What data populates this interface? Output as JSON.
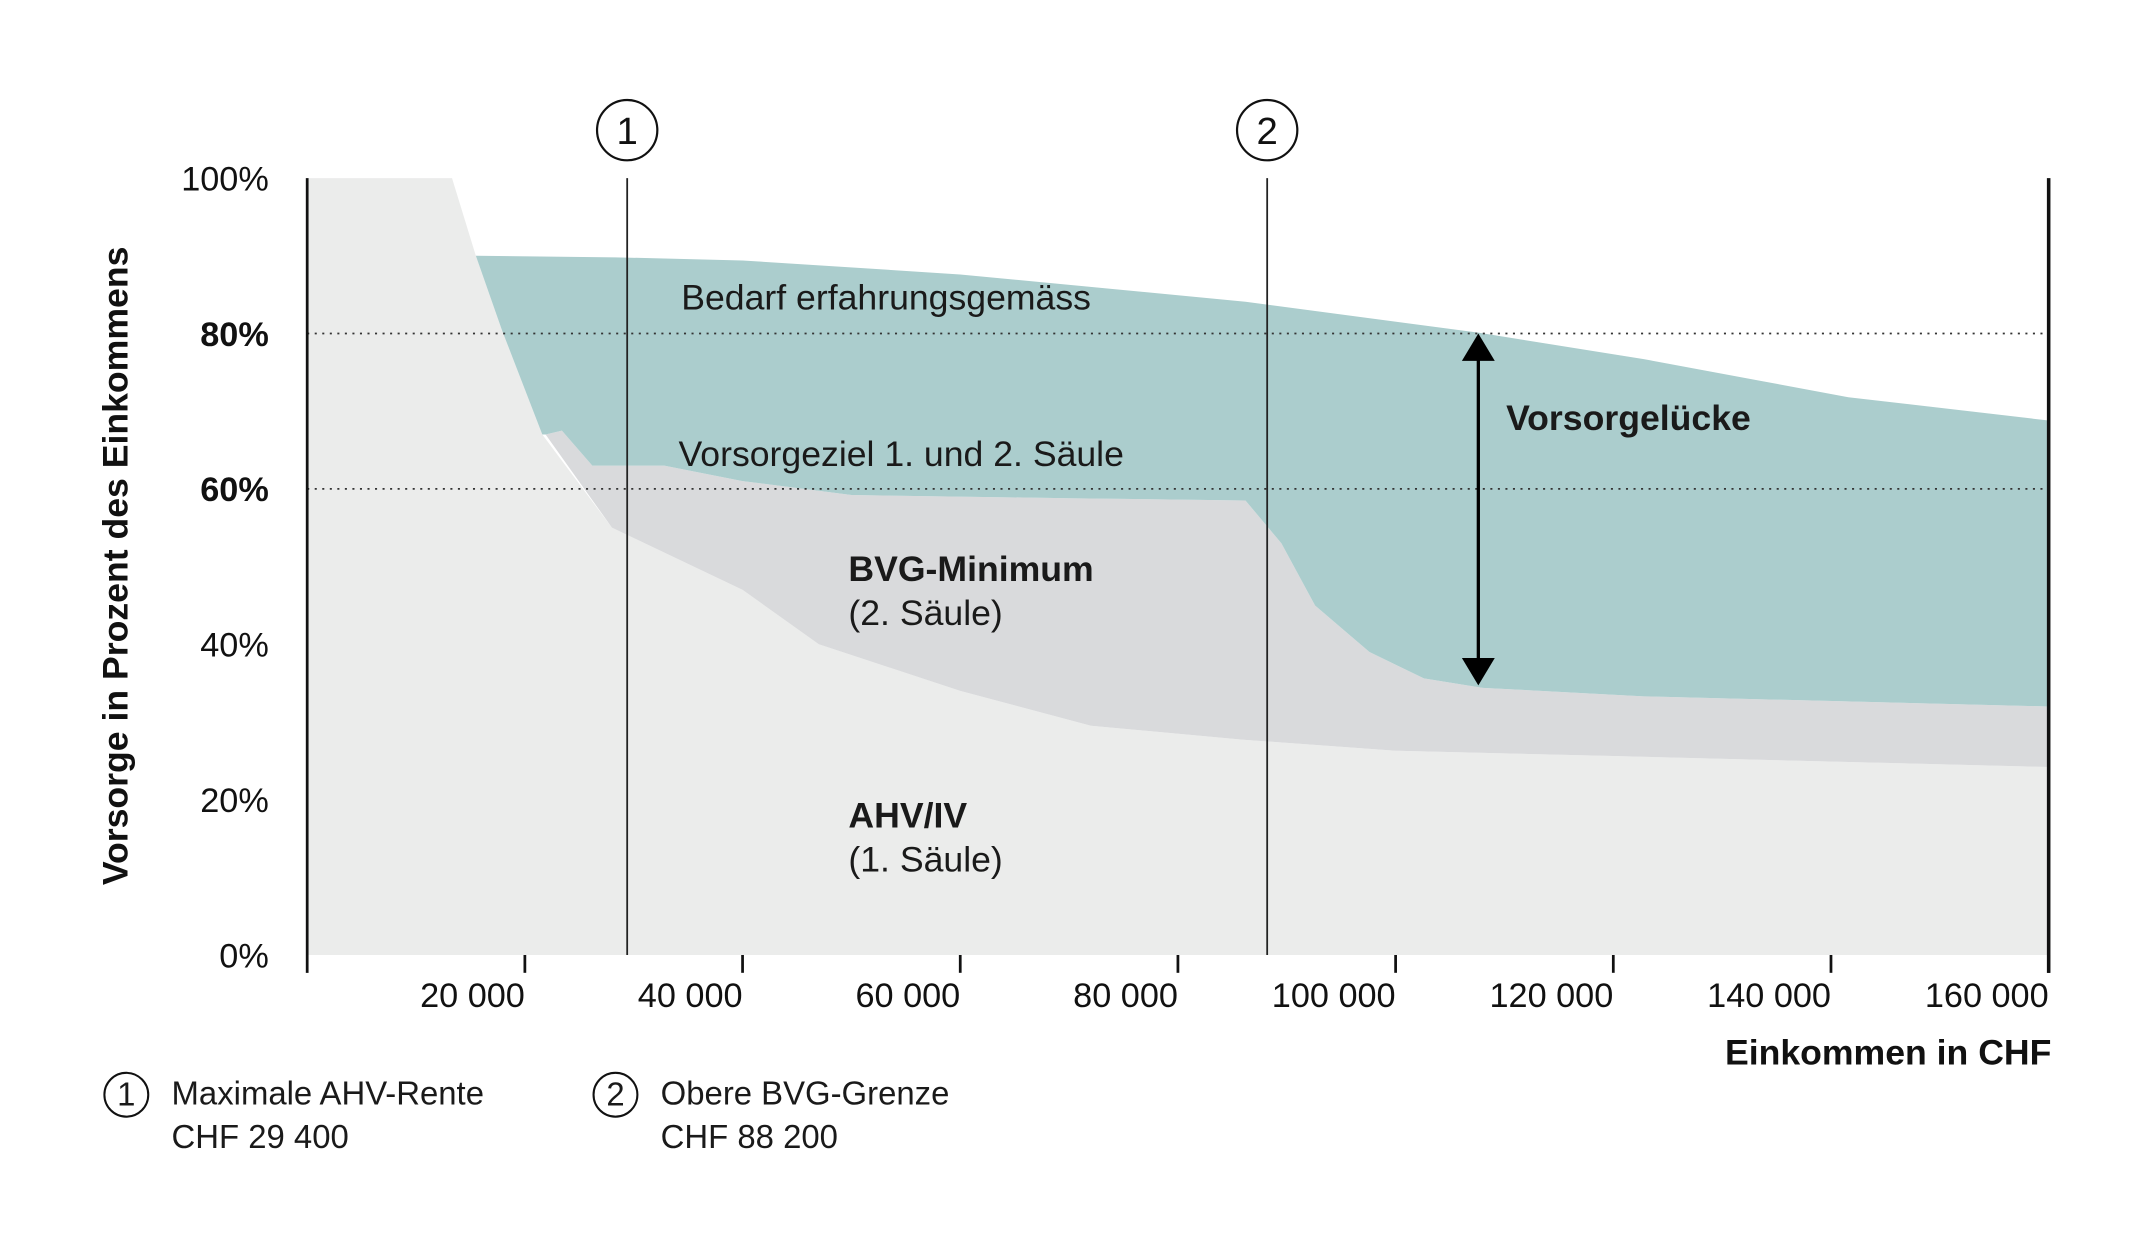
{
  "chart_data": {
    "type": "area",
    "ylabel": "Vorsorge in Prozent des Einkommens",
    "xlabel": "Einkommen in CHF",
    "xlim": [
      0,
      160000
    ],
    "ylim": [
      0,
      100
    ],
    "grid": false,
    "x_ticks": [
      {
        "value": 20000,
        "label": "20 000"
      },
      {
        "value": 40000,
        "label": "40 000"
      },
      {
        "value": 60000,
        "label": "60 000"
      },
      {
        "value": 80000,
        "label": "80 000"
      },
      {
        "value": 100000,
        "label": "100 000"
      },
      {
        "value": 120000,
        "label": "120 000"
      },
      {
        "value": 140000,
        "label": "140 000"
      },
      {
        "value": 160000,
        "label": "160 000"
      }
    ],
    "y_ticks": [
      {
        "value": 100,
        "label": "100%",
        "bold": false
      },
      {
        "value": 80,
        "label": "80%",
        "bold": true
      },
      {
        "value": 60,
        "label": "60%",
        "bold": true
      },
      {
        "value": 40,
        "label": "40%",
        "bold": false
      },
      {
        "value": 20,
        "label": "20%",
        "bold": false
      },
      {
        "value": 0,
        "label": "0%",
        "bold": false
      }
    ],
    "reference_lines": [
      80,
      60
    ],
    "series": [
      {
        "name": "AHV/IV",
        "sub": "(1. Säule)",
        "color": "#ebeceb",
        "x": [
          0,
          13300,
          15500,
          17900,
          21600,
          28000,
          40000,
          47000,
          60000,
          72000,
          86000,
          100000,
          120000,
          160000
        ],
        "y": [
          100,
          100,
          90,
          80.4,
          67,
          55,
          47,
          40,
          34,
          29.5,
          27.7,
          26.3,
          25.6,
          24.2
        ]
      },
      {
        "name": "BVG-Minimum",
        "sub": "(2. Säule)",
        "color": "#d9dadc",
        "x": [
          21900,
          23400,
          26200,
          32800,
          40000,
          50000,
          70000,
          86200,
          89500,
          92600,
          97600,
          102600,
          108000,
          122800,
          160000
        ],
        "y": [
          67,
          67.5,
          63,
          63,
          61,
          59.2,
          58.8,
          58.5,
          53,
          45,
          39,
          35.6,
          34.4,
          33.3,
          32
        ]
      },
      {
        "name": "Bedarf erfahrungsgemäss",
        "color": "#abcdcd",
        "x": [
          15500,
          28300,
          40000,
          60000,
          86200,
          107600,
          122800,
          141600,
          160000
        ],
        "y": [
          90,
          89.8,
          89.4,
          87.6,
          84.1,
          80.1,
          76.7,
          71.8,
          68.8
        ]
      }
    ],
    "annotations": {
      "vorsorgeziel": "Vorsorgeziel 1. und 2. Säule",
      "gap": "Vorsorgelücke",
      "gap_arrow": {
        "x": 107600,
        "from": 80,
        "to": 34.7
      }
    },
    "markers": [
      {
        "id": "1",
        "x": 29400,
        "label": "Maximale AHV-Rente",
        "value": "CHF 29 400"
      },
      {
        "id": "2",
        "x": 88200,
        "label": "Obere BVG-Grenze",
        "value": "CHF 88 200"
      }
    ]
  }
}
